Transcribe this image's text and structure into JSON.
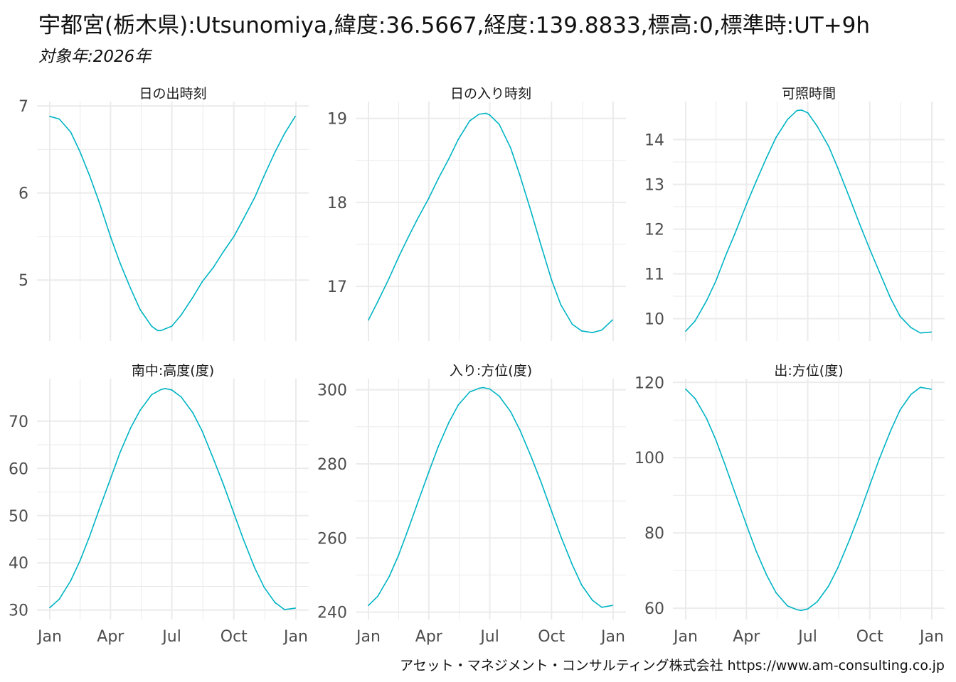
{
  "title": "宇都宮(栃木県):Utsunomiya,緯度:36.5667,経度:139.8833,標高:0,標準時:UT+9h",
  "subtitle": "対象年:2026年",
  "caption": "アセット・マネジメント・コンサルティング株式会社 https://www.am-consulting.co.jp",
  "colors": {
    "line": "#00B4C4",
    "grid": "#EBEBEB",
    "text": "#4D4D4D"
  },
  "x_tick_labels": [
    "Jan",
    "Apr",
    "Jul",
    "Oct",
    "Jan"
  ],
  "chart_data": [
    {
      "type": "line",
      "title": "日の出時刻",
      "x": [
        "Jan 1",
        "Jan 15",
        "Feb 1",
        "Feb 15",
        "Mar 1",
        "Mar 15",
        "Apr 1",
        "Apr 15",
        "May 1",
        "May 15",
        "Jun 1",
        "Jun 10",
        "Jun 15",
        "Jul 1",
        "Jul 15",
        "Aug 1",
        "Aug 15",
        "Sep 1",
        "Sep 15",
        "Oct 1",
        "Oct 15",
        "Nov 1",
        "Nov 15",
        "Dec 1",
        "Dec 15",
        "Dec 31"
      ],
      "values": [
        6.88,
        6.85,
        6.7,
        6.47,
        6.2,
        5.9,
        5.5,
        5.2,
        4.9,
        4.66,
        4.47,
        4.42,
        4.42,
        4.47,
        4.6,
        4.8,
        4.98,
        5.15,
        5.32,
        5.5,
        5.7,
        5.95,
        6.2,
        6.47,
        6.68,
        6.88
      ],
      "y_ticks": [
        5,
        6,
        7
      ],
      "ylim": [
        4.3,
        7.05
      ]
    },
    {
      "type": "line",
      "title": "日の入り時刻",
      "x": [
        "Jan 1",
        "Jan 15",
        "Feb 1",
        "Feb 15",
        "Mar 1",
        "Mar 15",
        "Apr 1",
        "Apr 15",
        "May 1",
        "May 15",
        "Jun 1",
        "Jun 15",
        "Jun 25",
        "Jul 1",
        "Jul 15",
        "Aug 1",
        "Aug 15",
        "Sep 1",
        "Sep 15",
        "Oct 1",
        "Oct 15",
        "Nov 1",
        "Nov 15",
        "Dec 1",
        "Dec 15",
        "Dec 31"
      ],
      "values": [
        16.6,
        16.82,
        17.1,
        17.35,
        17.58,
        17.8,
        18.05,
        18.28,
        18.52,
        18.75,
        18.97,
        19.05,
        19.06,
        19.04,
        18.93,
        18.65,
        18.32,
        17.88,
        17.5,
        17.08,
        16.78,
        16.55,
        16.47,
        16.45,
        16.48,
        16.6
      ],
      "y_ticks": [
        17,
        18,
        19
      ],
      "ylim": [
        16.35,
        19.2
      ]
    },
    {
      "type": "line",
      "title": "可照時間",
      "x": [
        "Jan 1",
        "Jan 15",
        "Feb 1",
        "Feb 15",
        "Mar 1",
        "Mar 15",
        "Apr 1",
        "Apr 15",
        "May 1",
        "May 15",
        "Jun 1",
        "Jun 15",
        "Jun 22",
        "Jul 1",
        "Jul 15",
        "Aug 1",
        "Aug 15",
        "Sep 1",
        "Sep 15",
        "Oct 1",
        "Oct 15",
        "Nov 1",
        "Nov 15",
        "Dec 1",
        "Dec 15",
        "Dec 31"
      ],
      "values": [
        9.72,
        9.95,
        10.4,
        10.85,
        11.4,
        11.9,
        12.55,
        13.05,
        13.6,
        14.05,
        14.45,
        14.65,
        14.66,
        14.6,
        14.3,
        13.85,
        13.35,
        12.7,
        12.15,
        11.55,
        11.05,
        10.45,
        10.05,
        9.8,
        9.68,
        9.7
      ],
      "y_ticks": [
        10,
        11,
        12,
        13,
        14
      ],
      "ylim": [
        9.5,
        14.85
      ]
    },
    {
      "type": "line",
      "title": "南中:高度(度)",
      "x": [
        "Jan 1",
        "Jan 15",
        "Feb 1",
        "Feb 15",
        "Mar 1",
        "Mar 15",
        "Apr 1",
        "Apr 15",
        "May 1",
        "May 15",
        "Jun 1",
        "Jun 15",
        "Jun 21",
        "Jul 1",
        "Jul 15",
        "Aug 1",
        "Aug 15",
        "Sep 1",
        "Sep 15",
        "Oct 1",
        "Oct 15",
        "Nov 1",
        "Nov 15",
        "Dec 1",
        "Dec 15",
        "Dec 31"
      ],
      "values": [
        30.5,
        32.3,
        36.2,
        40.5,
        45.6,
        51.2,
        57.8,
        63.3,
        68.6,
        72.3,
        75.6,
        76.7,
        76.9,
        76.6,
        75.1,
        71.8,
        67.9,
        61.9,
        56.8,
        50.5,
        45.0,
        38.9,
        34.8,
        31.6,
        30.1,
        30.4
      ],
      "y_ticks": [
        30,
        40,
        50,
        60,
        70
      ],
      "ylim": [
        28,
        79
      ]
    },
    {
      "type": "line",
      "title": "入り:方位(度)",
      "x": [
        "Jan 1",
        "Jan 15",
        "Feb 1",
        "Feb 15",
        "Mar 1",
        "Mar 15",
        "Apr 1",
        "Apr 15",
        "May 1",
        "May 15",
        "Jun 1",
        "Jun 15",
        "Jun 21",
        "Jul 1",
        "Jul 15",
        "Aug 1",
        "Aug 15",
        "Sep 1",
        "Sep 15",
        "Oct 1",
        "Oct 15",
        "Nov 1",
        "Nov 15",
        "Dec 1",
        "Dec 15",
        "Dec 31"
      ],
      "values": [
        241.8,
        244.3,
        249.6,
        255.4,
        262.2,
        269.3,
        277.8,
        284.6,
        291.2,
        295.9,
        299.4,
        300.4,
        300.6,
        300.2,
        298.3,
        294.1,
        289.1,
        281.8,
        275.3,
        267.3,
        260.4,
        252.8,
        247.3,
        243.2,
        241.3,
        241.8
      ],
      "y_ticks": [
        240,
        260,
        280,
        300
      ],
      "ylim": [
        238,
        303
      ]
    },
    {
      "type": "line",
      "title": "出:方位(度)",
      "x": [
        "Jan 1",
        "Jan 15",
        "Feb 1",
        "Feb 15",
        "Mar 1",
        "Mar 15",
        "Apr 1",
        "Apr 15",
        "May 1",
        "May 15",
        "Jun 1",
        "Jun 15",
        "Jun 21",
        "Jul 1",
        "Jul 15",
        "Aug 1",
        "Aug 15",
        "Sep 1",
        "Sep 15",
        "Oct 1",
        "Oct 15",
        "Nov 1",
        "Nov 15",
        "Dec 1",
        "Dec 15",
        "Dec 31"
      ],
      "values": [
        118.2,
        115.7,
        110.4,
        104.6,
        97.8,
        90.7,
        82.2,
        75.4,
        68.8,
        64.1,
        60.6,
        59.6,
        59.4,
        59.8,
        61.7,
        65.9,
        70.9,
        78.2,
        84.7,
        92.7,
        99.6,
        107.2,
        112.7,
        116.8,
        118.7,
        118.2
      ],
      "y_ticks": [
        60,
        80,
        100,
        120
      ],
      "ylim": [
        57,
        121
      ]
    }
  ]
}
